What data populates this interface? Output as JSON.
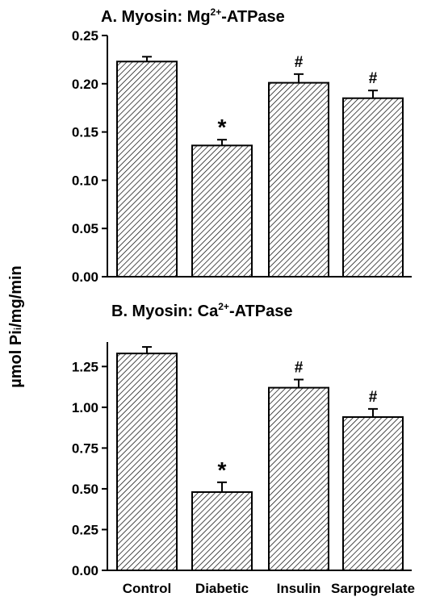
{
  "shared_ylabel": {
    "main": "µmol Pi",
    "sub": "i",
    "rest": "/mg/min"
  },
  "chart_data": [
    {
      "type": "bar",
      "title": {
        "prefix": "A. Myosin: Mg",
        "superscript": "2+",
        "suffix": "-ATPase"
      },
      "categories": [
        "Control",
        "Diabetic",
        "Insulin",
        "Sarpogrelate"
      ],
      "values": [
        0.223,
        0.136,
        0.201,
        0.185
      ],
      "errors": [
        0.005,
        0.006,
        0.009,
        0.008
      ],
      "annotations": [
        "",
        "*",
        "#",
        "#"
      ],
      "ylim": [
        0,
        0.25
      ],
      "yticks": [
        "0.00",
        "0.05",
        "0.10",
        "0.15",
        "0.20",
        "0.25"
      ],
      "xlabel": "",
      "show_category_labels": false,
      "bar_fill": "hatched-diagonal"
    },
    {
      "type": "bar",
      "title": {
        "prefix": "B. Myosin: Ca",
        "superscript": "2+",
        "suffix": "-ATPase"
      },
      "categories": [
        "Control",
        "Diabetic",
        "Insulin",
        "Sarpogrelate"
      ],
      "values": [
        1.33,
        0.48,
        1.12,
        0.94
      ],
      "errors": [
        0.04,
        0.06,
        0.05,
        0.05
      ],
      "annotations": [
        "",
        "*",
        "#",
        "#"
      ],
      "ylim": [
        0,
        1.4
      ],
      "yticks": [
        "0.00",
        "0.25",
        "0.50",
        "0.75",
        "1.00",
        "1.25"
      ],
      "xlabel": "",
      "show_category_labels": true,
      "bar_fill": "hatched-diagonal"
    }
  ],
  "colors": {
    "bar_stroke": "#000000",
    "hatch": "#000000",
    "background": "#ffffff"
  }
}
